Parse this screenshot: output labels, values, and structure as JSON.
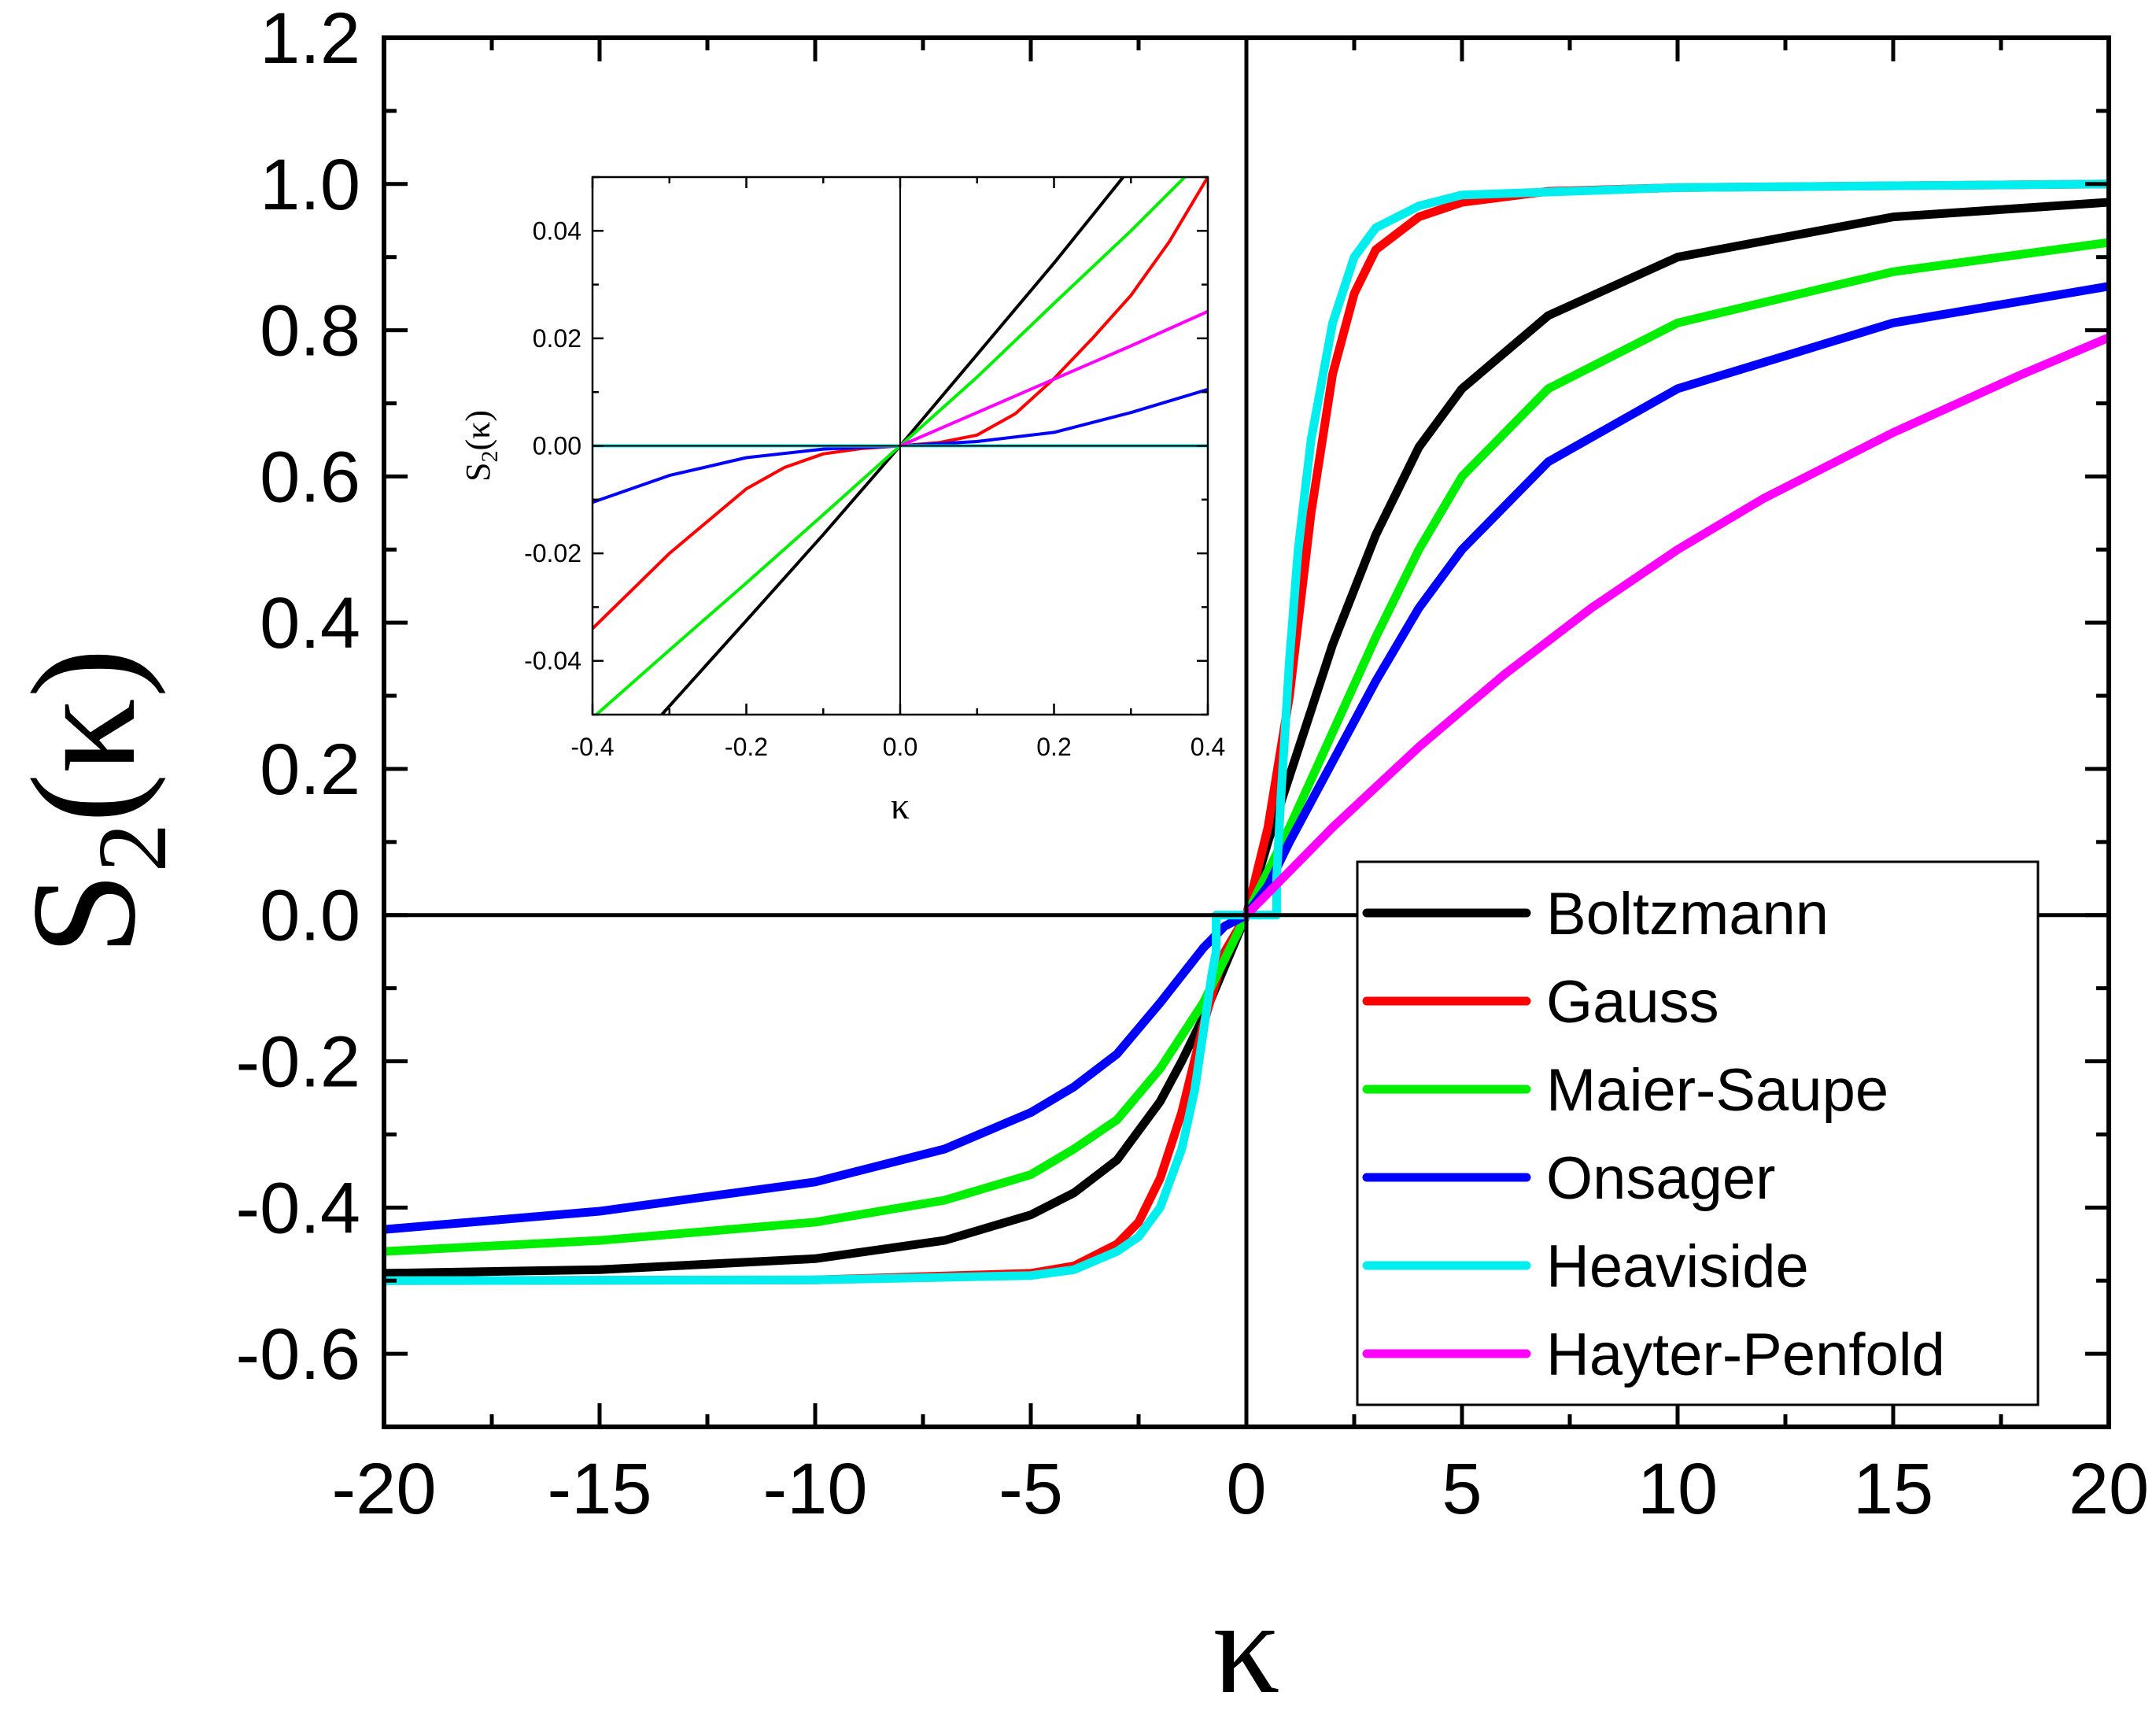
{
  "chart_data": [
    {
      "id": "main",
      "type": "line",
      "xlabel": "κ",
      "ylabel_base": "S",
      "ylabel_sub": "2",
      "ylabel_arg": "(κ)",
      "xlim": [
        -20,
        20
      ],
      "ylim": [
        -0.7,
        1.2
      ],
      "xticks": [
        -20,
        -15,
        -10,
        -5,
        0,
        5,
        10,
        15,
        20
      ],
      "xtick_labels": [
        "-20",
        "-15",
        "-10",
        "-5",
        "0",
        "5",
        "10",
        "15",
        "20"
      ],
      "yticks": [
        -0.6,
        -0.4,
        -0.2,
        0.0,
        0.2,
        0.4,
        0.6,
        0.8,
        1.0,
        1.2
      ],
      "ytick_labels": [
        "-0.6",
        "-0.4",
        "-0.2",
        "0.0",
        "0.2",
        "0.4",
        "0.6",
        "0.8",
        "1.0",
        "1.2"
      ],
      "grid": false,
      "zero_lines": true,
      "legend": {
        "position": "bottom-right"
      },
      "series": [
        {
          "name": "Boltzmann",
          "color": "#000000",
          "x": [
            -20,
            -15,
            -10,
            -7,
            -5,
            -4,
            -3,
            -2,
            -1.5,
            -1,
            -0.5,
            0,
            0.5,
            1,
            1.5,
            2,
            3,
            4,
            5,
            7,
            10,
            15,
            20
          ],
          "y": [
            -0.49,
            -0.485,
            -0.47,
            -0.445,
            -0.41,
            -0.38,
            -0.335,
            -0.255,
            -0.2,
            -0.14,
            -0.07,
            0,
            0.1,
            0.19,
            0.28,
            0.37,
            0.52,
            0.64,
            0.72,
            0.82,
            0.9,
            0.955,
            0.975
          ]
        },
        {
          "name": "Gauss",
          "color": "#ff0000",
          "x": [
            -20,
            -10,
            -5,
            -4,
            -3,
            -2.5,
            -2,
            -1.5,
            -1,
            -0.5,
            0,
            0.5,
            1,
            1.5,
            2,
            2.5,
            3,
            4,
            5,
            7,
            10,
            20
          ],
          "y": [
            -0.5,
            -0.499,
            -0.49,
            -0.48,
            -0.45,
            -0.42,
            -0.36,
            -0.27,
            -0.15,
            -0.05,
            0,
            0.12,
            0.3,
            0.55,
            0.74,
            0.85,
            0.91,
            0.955,
            0.975,
            0.99,
            0.995,
            1.0
          ]
        },
        {
          "name": "Maier-Saupe",
          "color": "#00ee00",
          "x": [
            -20,
            -15,
            -10,
            -7,
            -5,
            -4,
            -3,
            -2,
            -1,
            -0.5,
            0,
            0.5,
            1,
            2,
            3,
            4,
            5,
            7,
            10,
            15,
            20
          ],
          "y": [
            -0.46,
            -0.445,
            -0.42,
            -0.39,
            -0.355,
            -0.32,
            -0.28,
            -0.21,
            -0.12,
            -0.06,
            0,
            0.06,
            0.12,
            0.25,
            0.38,
            0.5,
            0.6,
            0.72,
            0.81,
            0.88,
            0.92
          ]
        },
        {
          "name": "Onsager",
          "color": "#0000ff",
          "x": [
            -20,
            -15,
            -10,
            -7,
            -5,
            -4,
            -3,
            -2,
            -1,
            -0.5,
            0,
            0.5,
            1,
            2,
            3,
            4,
            5,
            7,
            10,
            15,
            20
          ],
          "y": [
            -0.43,
            -0.405,
            -0.365,
            -0.32,
            -0.27,
            -0.235,
            -0.19,
            -0.12,
            -0.045,
            -0.015,
            0,
            0.04,
            0.1,
            0.21,
            0.32,
            0.42,
            0.5,
            0.62,
            0.72,
            0.81,
            0.86
          ]
        },
        {
          "name": "Heaviside",
          "color": "#00eeee",
          "x": [
            -20,
            -10,
            -5,
            -4,
            -3,
            -2.5,
            -2,
            -1.5,
            -1.2,
            -1,
            -0.8,
            -0.7,
            -0.7,
            0.7,
            0.7,
            0.8,
            1,
            1.2,
            1.5,
            2,
            2.5,
            3,
            4,
            5,
            10,
            20
          ],
          "y": [
            -0.5,
            -0.499,
            -0.493,
            -0.485,
            -0.46,
            -0.44,
            -0.4,
            -0.32,
            -0.24,
            -0.16,
            -0.08,
            -0.05,
            0,
            0,
            0.05,
            0.16,
            0.35,
            0.5,
            0.65,
            0.81,
            0.9,
            0.94,
            0.97,
            0.985,
            0.995,
            1.0
          ]
        },
        {
          "name": "Hayter-Penfold",
          "color": "#ff00ff",
          "x": [
            0,
            1,
            2,
            3,
            4,
            5,
            6,
            8,
            10,
            12,
            15,
            18,
            20
          ],
          "y": [
            0,
            0.06,
            0.12,
            0.175,
            0.23,
            0.28,
            0.33,
            0.42,
            0.5,
            0.57,
            0.66,
            0.74,
            0.79
          ]
        }
      ]
    },
    {
      "id": "inset",
      "type": "line",
      "xlabel": "κ",
      "ylabel_base": "S",
      "ylabel_sub": "2",
      "ylabel_arg": "(κ)",
      "xlim": [
        -0.4,
        0.4
      ],
      "ylim": [
        -0.05,
        0.05
      ],
      "xticks": [
        -0.4,
        -0.2,
        0.0,
        0.2,
        0.4
      ],
      "xtick_labels": [
        "-0.4",
        "-0.2",
        "0.0",
        "0.2",
        "0.4"
      ],
      "yticks": [
        -0.04,
        -0.02,
        0.0,
        0.02,
        0.04
      ],
      "ytick_labels": [
        "-0.04",
        "-0.02",
        "0.00",
        "0.02",
        "0.04"
      ],
      "grid": false,
      "series": [
        {
          "name": "Boltzmann",
          "color": "#000000",
          "x": [
            -0.31,
            -0.2,
            -0.1,
            0,
            0.1,
            0.2,
            0.29
          ],
          "y": [
            -0.05,
            -0.0325,
            -0.0165,
            0,
            0.017,
            0.034,
            0.05
          ]
        },
        {
          "name": "Gauss",
          "color": "#ff0000",
          "x": [
            -0.4,
            -0.35,
            -0.3,
            -0.25,
            -0.2,
            -0.15,
            -0.1,
            -0.05,
            0,
            0.05,
            0.1,
            0.15,
            0.2,
            0.25,
            0.3,
            0.35,
            0.4
          ],
          "y": [
            -0.034,
            -0.027,
            -0.02,
            -0.014,
            -0.008,
            -0.004,
            -0.0015,
            -0.0005,
            0,
            0.0006,
            0.002,
            0.006,
            0.0125,
            0.02,
            0.028,
            0.038,
            0.05
          ]
        },
        {
          "name": "Maier-Saupe",
          "color": "#00ee00",
          "x": [
            -0.395,
            -0.3,
            -0.2,
            -0.1,
            0,
            0.1,
            0.2,
            0.3,
            0.37
          ],
          "y": [
            -0.05,
            -0.038,
            -0.0255,
            -0.0128,
            0,
            0.0128,
            0.0265,
            0.04,
            0.05
          ]
        },
        {
          "name": "Onsager",
          "color": "#0000ff",
          "x": [
            -0.4,
            -0.3,
            -0.2,
            -0.1,
            0,
            0.1,
            0.2,
            0.3,
            0.4
          ],
          "y": [
            -0.0105,
            -0.0055,
            -0.0022,
            -0.0006,
            0,
            0.0008,
            0.0025,
            0.0062,
            0.0105
          ]
        },
        {
          "name": "Heaviside",
          "color": "#00eeee",
          "x": [
            -0.4,
            0.4
          ],
          "y": [
            0,
            0
          ]
        },
        {
          "name": "Hayter-Penfold",
          "color": "#ff00ff",
          "x": [
            0,
            0.1,
            0.2,
            0.3,
            0.4
          ],
          "y": [
            0,
            0.0062,
            0.0124,
            0.0186,
            0.025
          ]
        }
      ]
    }
  ]
}
